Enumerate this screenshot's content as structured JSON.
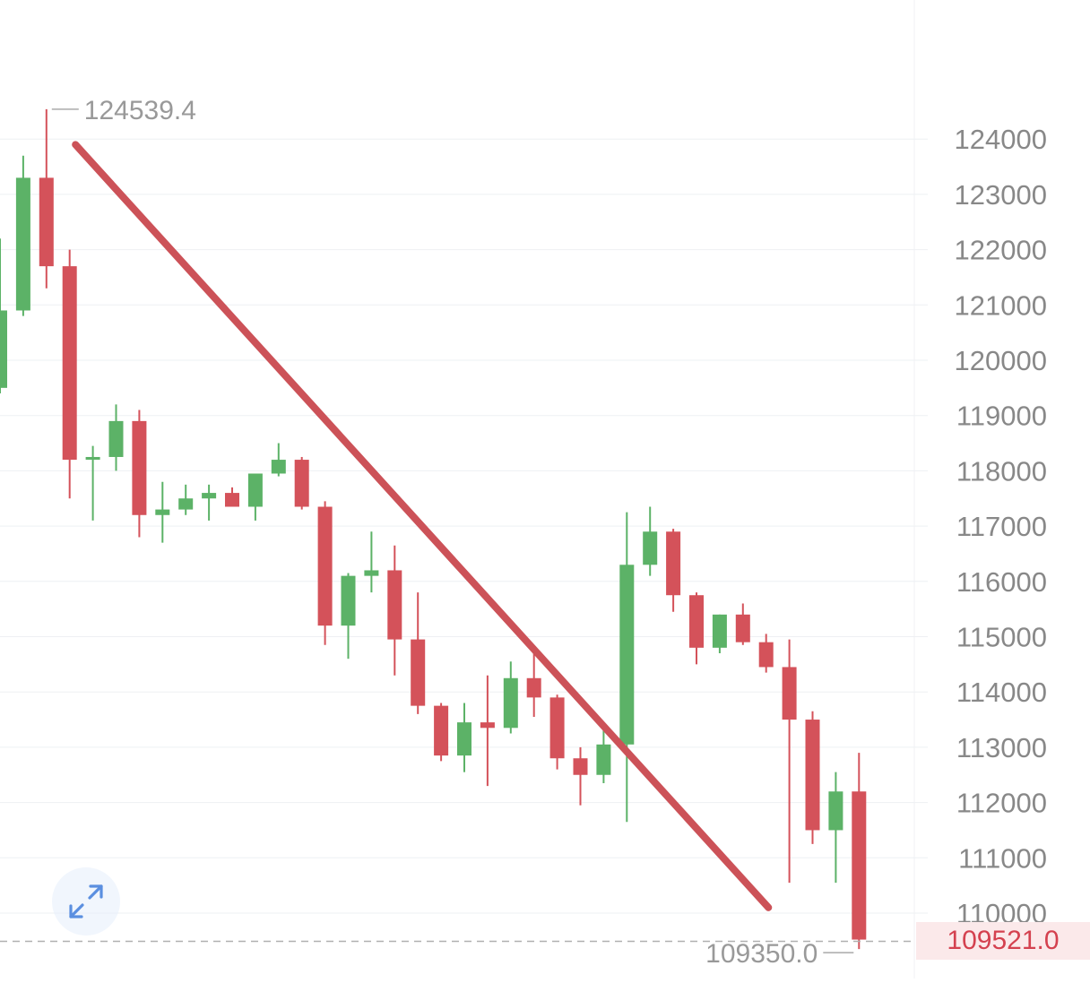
{
  "chart_data": {
    "type": "candlestick",
    "title": "",
    "xlabel": "",
    "ylabel": "",
    "ylim": [
      109000,
      125800
    ],
    "y_ticks": [
      110000,
      111000,
      112000,
      113000,
      114000,
      115000,
      116000,
      117000,
      118000,
      119000,
      120000,
      121000,
      122000,
      123000,
      124000
    ],
    "y_tick_labels": [
      "110000",
      "111000",
      "112000",
      "113000",
      "114000",
      "115000",
      "116000",
      "117000",
      "118000",
      "119000",
      "120000",
      "121000",
      "122000",
      "123000",
      "124000"
    ],
    "grid": true,
    "colors": {
      "up": "#5cb267",
      "down": "#d4525a",
      "trendline": "#cc5258",
      "current_price": "#d4414f",
      "axis_text": "#888888",
      "grid": "#eef0f3"
    },
    "candles": [
      {
        "open": 119500,
        "high": 122200,
        "low": 119400,
        "close": 120900
      },
      {
        "open": 120900,
        "high": 123700,
        "low": 120800,
        "close": 123300
      },
      {
        "open": 123300,
        "high": 124539.4,
        "low": 121300,
        "close": 121700
      },
      {
        "open": 121700,
        "high": 122000,
        "low": 117500,
        "close": 118200
      },
      {
        "open": 118200,
        "high": 118450,
        "low": 117100,
        "close": 118250
      },
      {
        "open": 118250,
        "high": 119200,
        "low": 118000,
        "close": 118900
      },
      {
        "open": 118900,
        "high": 119100,
        "low": 116800,
        "close": 117200
      },
      {
        "open": 117200,
        "high": 117800,
        "low": 116700,
        "close": 117300
      },
      {
        "open": 117300,
        "high": 117750,
        "low": 117200,
        "close": 117500
      },
      {
        "open": 117500,
        "high": 117750,
        "low": 117100,
        "close": 117600
      },
      {
        "open": 117600,
        "high": 117700,
        "low": 117350,
        "close": 117350
      },
      {
        "open": 117350,
        "high": 117950,
        "low": 117100,
        "close": 117950
      },
      {
        "open": 117950,
        "high": 118500,
        "low": 117900,
        "close": 118200
      },
      {
        "open": 118200,
        "high": 118250,
        "low": 117300,
        "close": 117350
      },
      {
        "open": 117350,
        "high": 117450,
        "low": 114850,
        "close": 115200
      },
      {
        "open": 115200,
        "high": 116150,
        "low": 114600,
        "close": 116100
      },
      {
        "open": 116100,
        "high": 116900,
        "low": 115800,
        "close": 116200
      },
      {
        "open": 116200,
        "high": 116650,
        "low": 114300,
        "close": 114950
      },
      {
        "open": 114950,
        "high": 115800,
        "low": 113600,
        "close": 113750
      },
      {
        "open": 113750,
        "high": 113800,
        "low": 112750,
        "close": 112850
      },
      {
        "open": 112850,
        "high": 113800,
        "low": 112550,
        "close": 113450
      },
      {
        "open": 113450,
        "high": 114300,
        "low": 112300,
        "close": 113350
      },
      {
        "open": 113350,
        "high": 114550,
        "low": 113250,
        "close": 114250
      },
      {
        "open": 114250,
        "high": 114750,
        "low": 113550,
        "close": 113900
      },
      {
        "open": 113900,
        "high": 113950,
        "low": 112600,
        "close": 112800
      },
      {
        "open": 112800,
        "high": 113000,
        "low": 111950,
        "close": 112500
      },
      {
        "open": 112500,
        "high": 113450,
        "low": 112350,
        "close": 113050
      },
      {
        "open": 113050,
        "high": 117250,
        "low": 111650,
        "close": 116300
      },
      {
        "open": 116300,
        "high": 117350,
        "low": 116100,
        "close": 116900
      },
      {
        "open": 116900,
        "high": 116950,
        "low": 115450,
        "close": 115750
      },
      {
        "open": 115750,
        "high": 115800,
        "low": 114500,
        "close": 114800
      },
      {
        "open": 114800,
        "high": 115400,
        "low": 114700,
        "close": 115400
      },
      {
        "open": 115400,
        "high": 115600,
        "low": 114850,
        "close": 114900
      },
      {
        "open": 114900,
        "high": 115050,
        "low": 114350,
        "close": 114450
      },
      {
        "open": 114450,
        "high": 114950,
        "low": 110550,
        "close": 113500
      },
      {
        "open": 113500,
        "high": 113650,
        "low": 111250,
        "close": 111500
      },
      {
        "open": 111500,
        "high": 112550,
        "low": 110550,
        "close": 112200
      },
      {
        "open": 112200,
        "high": 112900,
        "low": 109350,
        "close": 109521
      }
    ],
    "trendline": {
      "from": {
        "index": 3.25,
        "value": 123900
      },
      "to": {
        "index": 33.1,
        "value": 110100
      }
    },
    "annotations": {
      "high_label": "124539.4",
      "low_label": "109350.0",
      "current_price_label": "109521.0",
      "current_price": 109521
    }
  },
  "ui": {
    "expand_icon": "expand-diagonal-icon"
  }
}
